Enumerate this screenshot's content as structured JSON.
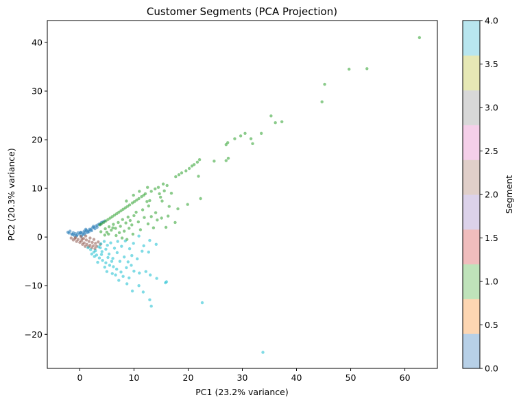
{
  "chart_data": {
    "type": "scatter",
    "title": "Customer Segments (PCA Projection)",
    "xlabel": "PC1 (23.2% variance)",
    "ylabel": "PC2 (20.3% variance)",
    "xlim": [
      -6,
      66
    ],
    "ylim": [
      -27,
      44.5
    ],
    "xticks": [
      0,
      10,
      20,
      30,
      40,
      50,
      60
    ],
    "yticks": [
      -20,
      -10,
      0,
      10,
      20,
      30,
      40
    ],
    "grid": false,
    "colorbar": {
      "label": "Segment",
      "range": [
        0,
        4
      ],
      "ticks": [
        "0.0",
        "0.5",
        "1.0",
        "1.5",
        "2.0",
        "2.5",
        "3.0",
        "3.5",
        "4.0"
      ],
      "colors": [
        "#b7d0e7",
        "#fdd6b2",
        "#bfe3ba",
        "#f0bdbd",
        "#dcd2ea",
        "#e0cfc9",
        "#f5cfe9",
        "#d8d8d8",
        "#e6e8b5",
        "#b8e6ef"
      ]
    },
    "series": [
      {
        "segment": 0,
        "color": "#1f77b4",
        "points": [
          [
            -2.2,
            1.0
          ],
          [
            -2.0,
            0.8
          ],
          [
            -1.8,
            1.2
          ],
          [
            -1.5,
            0.6
          ],
          [
            -1.2,
            0.9
          ],
          [
            -1.0,
            0.3
          ],
          [
            -0.8,
            0.7
          ],
          [
            -0.5,
            0.4
          ],
          [
            -0.3,
            0.9
          ],
          [
            0.0,
            0.6
          ],
          [
            0.2,
            1.0
          ],
          [
            0.5,
            0.8
          ],
          [
            0.8,
            1.2
          ],
          [
            1.0,
            1.0
          ],
          [
            1.2,
            1.4
          ],
          [
            1.5,
            1.2
          ],
          [
            1.8,
            1.6
          ],
          [
            2.0,
            1.5
          ],
          [
            2.3,
            1.9
          ],
          [
            2.6,
            2.0
          ],
          [
            3.0,
            2.3
          ],
          [
            3.3,
            2.5
          ],
          [
            3.6,
            2.7
          ],
          [
            4.0,
            3.0
          ],
          [
            4.3,
            3.1
          ],
          [
            0.3,
            0.2
          ],
          [
            0.6,
            0.5
          ],
          [
            0.9,
            0.6
          ],
          [
            1.4,
            0.9
          ],
          [
            1.7,
            1.1
          ],
          [
            2.2,
            1.3
          ],
          [
            2.8,
            1.7
          ],
          [
            3.2,
            2.0
          ],
          [
            -0.6,
            0.2
          ],
          [
            -1.3,
            0.5
          ],
          [
            0.1,
            0.9
          ],
          [
            1.1,
            1.6
          ],
          [
            2.5,
            2.2
          ],
          [
            3.8,
            2.6
          ],
          [
            4.6,
            3.3
          ]
        ]
      },
      {
        "segment": 1,
        "color": "#2ca02c",
        "points": [
          [
            62.7,
            41.0
          ],
          [
            53.0,
            34.6
          ],
          [
            49.7,
            34.5
          ],
          [
            45.2,
            31.4
          ],
          [
            44.7,
            27.8
          ],
          [
            37.3,
            23.7
          ],
          [
            36.1,
            23.5
          ],
          [
            35.3,
            24.9
          ],
          [
            33.5,
            21.3
          ],
          [
            31.6,
            20.2
          ],
          [
            30.5,
            21.3
          ],
          [
            31.9,
            19.2
          ],
          [
            29.7,
            20.8
          ],
          [
            28.6,
            20.2
          ],
          [
            27.3,
            19.4
          ],
          [
            27.0,
            19.0
          ],
          [
            27.4,
            16.2
          ],
          [
            27.0,
            15.7
          ],
          [
            24.8,
            15.6
          ],
          [
            22.1,
            15.9
          ],
          [
            21.7,
            15.4
          ],
          [
            21.1,
            14.9
          ],
          [
            20.7,
            14.6
          ],
          [
            20.2,
            14.1
          ],
          [
            19.6,
            13.6
          ],
          [
            18.8,
            13.2
          ],
          [
            18.3,
            12.8
          ],
          [
            17.7,
            12.4
          ],
          [
            21.9,
            12.5
          ],
          [
            22.3,
            7.9
          ],
          [
            19.9,
            6.7
          ],
          [
            18.1,
            5.8
          ],
          [
            16.5,
            6.3
          ],
          [
            15.6,
            9.5
          ],
          [
            15.2,
            7.4
          ],
          [
            14.9,
            8.2
          ],
          [
            14.5,
            10.2
          ],
          [
            13.9,
            9.9
          ],
          [
            13.2,
            9.4
          ],
          [
            12.9,
            7.5
          ],
          [
            12.4,
            7.3
          ],
          [
            12.1,
            8.9
          ],
          [
            11.8,
            8.6
          ],
          [
            11.4,
            8.3
          ],
          [
            10.9,
            7.9
          ],
          [
            10.5,
            7.6
          ],
          [
            10.1,
            7.3
          ],
          [
            9.7,
            7.0
          ],
          [
            9.2,
            6.6
          ],
          [
            8.8,
            6.3
          ],
          [
            8.4,
            6.0
          ],
          [
            8.0,
            5.7
          ],
          [
            7.6,
            5.4
          ],
          [
            7.2,
            5.1
          ],
          [
            6.8,
            4.8
          ],
          [
            6.4,
            4.5
          ],
          [
            6.0,
            4.2
          ],
          [
            5.6,
            3.9
          ],
          [
            5.2,
            3.6
          ],
          [
            4.8,
            3.3
          ],
          [
            4.4,
            3.0
          ],
          [
            4.0,
            2.7
          ],
          [
            3.7,
            2.5
          ],
          [
            9.3,
            3.4
          ],
          [
            8.9,
            4.1
          ],
          [
            8.5,
            2.9
          ],
          [
            7.9,
            3.6
          ],
          [
            7.5,
            2.2
          ],
          [
            7.1,
            3.0
          ],
          [
            6.6,
            1.8
          ],
          [
            6.2,
            2.6
          ],
          [
            5.8,
            1.4
          ],
          [
            5.4,
            2.1
          ],
          [
            5.0,
            1.0
          ],
          [
            4.7,
            1.7
          ],
          [
            10.4,
            5.1
          ],
          [
            11.6,
            5.6
          ],
          [
            12.7,
            6.4
          ],
          [
            10.0,
            4.4
          ],
          [
            9.6,
            2.5
          ],
          [
            14.0,
            5.0
          ],
          [
            13.2,
            4.2
          ],
          [
            16.3,
            4.3
          ],
          [
            15.1,
            3.9
          ],
          [
            7.3,
            0.9
          ],
          [
            6.7,
            0.3
          ],
          [
            8.2,
            1.2
          ],
          [
            9.1,
            1.8
          ],
          [
            10.8,
            3.1
          ],
          [
            11.9,
            4.0
          ],
          [
            12.6,
            2.7
          ],
          [
            14.3,
            3.5
          ],
          [
            15.9,
            2.0
          ],
          [
            17.6,
            3.0
          ],
          [
            8.7,
            -0.5
          ],
          [
            7.8,
            -0.2
          ],
          [
            9.8,
            0.6
          ],
          [
            11.2,
            1.5
          ],
          [
            13.6,
            1.9
          ],
          [
            6.1,
            1.9
          ],
          [
            5.3,
            0.6
          ],
          [
            4.6,
            0.4
          ],
          [
            3.9,
            1.1
          ],
          [
            16.9,
            9.0
          ],
          [
            14.7,
            8.9
          ],
          [
            16.1,
            10.6
          ],
          [
            15.4,
            10.9
          ],
          [
            12.5,
            10.2
          ],
          [
            11.0,
            9.4
          ],
          [
            9.9,
            8.6
          ],
          [
            8.6,
            7.4
          ]
        ]
      },
      {
        "segment": 2,
        "color": "#8c564b",
        "points": [
          [
            -1.6,
            -0.2
          ],
          [
            -1.2,
            -0.6
          ],
          [
            -0.9,
            -0.3
          ],
          [
            -0.6,
            -0.9
          ],
          [
            -0.3,
            -0.5
          ],
          [
            0.0,
            -1.1
          ],
          [
            0.3,
            -0.8
          ],
          [
            0.5,
            -1.5
          ],
          [
            0.8,
            -1.2
          ],
          [
            1.0,
            -1.9
          ],
          [
            1.3,
            -1.5
          ],
          [
            1.6,
            -2.0
          ],
          [
            1.9,
            -1.7
          ],
          [
            2.2,
            -2.2
          ],
          [
            2.5,
            -1.8
          ],
          [
            2.8,
            -2.4
          ],
          [
            3.1,
            -1.9
          ],
          [
            0.2,
            0.1
          ],
          [
            0.7,
            -0.3
          ],
          [
            1.2,
            -0.6
          ],
          [
            1.7,
            -0.9
          ],
          [
            2.3,
            -1.1
          ],
          [
            2.9,
            -1.3
          ],
          [
            3.4,
            -1.0
          ],
          [
            3.8,
            -1.5
          ],
          [
            1.1,
            0.2
          ],
          [
            1.9,
            -0.2
          ],
          [
            2.6,
            -0.5
          ],
          [
            -0.8,
            -0.1
          ],
          [
            0.4,
            -0.4
          ]
        ]
      },
      {
        "segment": 4,
        "color": "#17becf",
        "points": [
          [
            33.8,
            -23.7
          ],
          [
            22.6,
            -13.5
          ],
          [
            13.2,
            -14.2
          ],
          [
            12.9,
            -12.9
          ],
          [
            16.0,
            -9.2
          ],
          [
            15.8,
            -9.4
          ],
          [
            11.7,
            -11.3
          ],
          [
            10.9,
            -10.0
          ],
          [
            9.7,
            -11.1
          ],
          [
            8.7,
            -9.6
          ],
          [
            14.2,
            -8.5
          ],
          [
            13.0,
            -7.8
          ],
          [
            12.2,
            -7.1
          ],
          [
            11.0,
            -7.4
          ],
          [
            10.0,
            -7.0
          ],
          [
            9.1,
            -8.4
          ],
          [
            8.0,
            -8.1
          ],
          [
            7.6,
            -7.2
          ],
          [
            6.8,
            -6.6
          ],
          [
            6.2,
            -6.1
          ],
          [
            5.5,
            -5.8
          ],
          [
            4.8,
            -5.3
          ],
          [
            4.2,
            -4.8
          ],
          [
            3.6,
            -4.3
          ],
          [
            3.1,
            -3.7
          ],
          [
            2.6,
            -3.1
          ],
          [
            2.0,
            -2.6
          ],
          [
            1.5,
            -2.2
          ],
          [
            12.7,
            -3.1
          ],
          [
            11.5,
            -2.9
          ],
          [
            10.6,
            -4.5
          ],
          [
            9.6,
            -3.8
          ],
          [
            8.9,
            -5.1
          ],
          [
            8.2,
            -4.1
          ],
          [
            7.4,
            -5.0
          ],
          [
            6.9,
            -3.2
          ],
          [
            6.1,
            -4.4
          ],
          [
            5.4,
            -3.5
          ],
          [
            4.8,
            -2.5
          ],
          [
            4.1,
            -3.0
          ],
          [
            3.5,
            -2.0
          ],
          [
            2.9,
            -2.8
          ],
          [
            14.1,
            -1.5
          ],
          [
            12.9,
            -0.7
          ],
          [
            11.8,
            -1.8
          ],
          [
            10.9,
            0.2
          ],
          [
            9.9,
            -1.3
          ],
          [
            9.2,
            -2.4
          ],
          [
            8.4,
            -0.8
          ],
          [
            7.7,
            -1.9
          ],
          [
            7.0,
            -0.9
          ],
          [
            6.4,
            -2.3
          ],
          [
            5.7,
            -1.2
          ],
          [
            5.1,
            -1.7
          ],
          [
            4.5,
            -0.9
          ],
          [
            3.9,
            -1.4
          ],
          [
            6.6,
            -7.8
          ],
          [
            5.9,
            -5.0
          ],
          [
            5.2,
            -4.2
          ],
          [
            4.6,
            -6.2
          ],
          [
            4.0,
            -3.6
          ],
          [
            3.3,
            -5.2
          ],
          [
            2.7,
            -4.0
          ],
          [
            2.2,
            -3.5
          ],
          [
            5.0,
            -7.1
          ],
          [
            6.0,
            -7.5
          ],
          [
            7.2,
            -8.9
          ],
          [
            3.8,
            -2.2
          ],
          [
            8.6,
            -6.3
          ],
          [
            9.5,
            -5.8
          ]
        ]
      }
    ]
  }
}
